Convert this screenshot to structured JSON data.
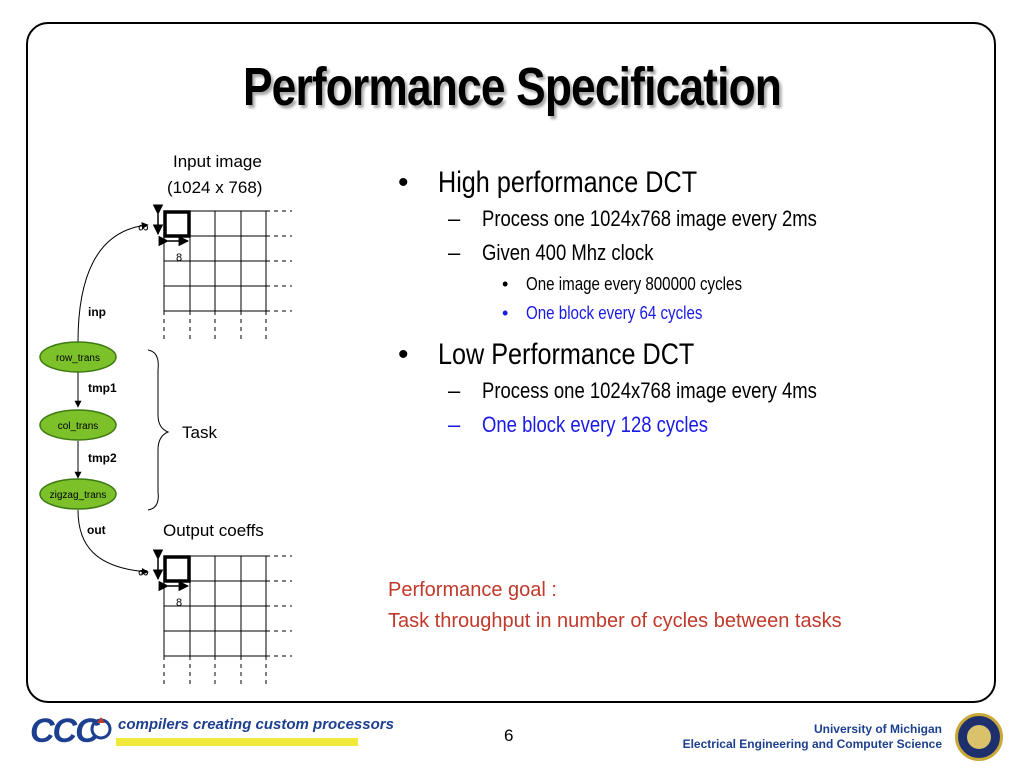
{
  "slide": {
    "title": "Performance Specification",
    "page_number": "6"
  },
  "diagram": {
    "input_label_1": "Input image",
    "input_label_2": "(1024 x 768)",
    "output_label": "Output coeffs",
    "block_size": "8",
    "infinity": "∞",
    "task_label": "Task",
    "nodes": [
      "row_trans",
      "col_trans",
      "zigzag_trans"
    ],
    "edges": [
      "inp",
      "tmp1",
      "tmp2",
      "out"
    ],
    "node_color": "#7cc02a"
  },
  "bullets": {
    "b1": "High performance DCT",
    "b1_1": "Process one 1024x768 image every 2ms",
    "b1_2": "Given 400 Mhz clock",
    "b1_2_1": "One image every 800000 cycles",
    "b1_2_2": "One block every 64 cycles",
    "b2": "Low Performance DCT",
    "b2_1": "Process one 1024x768 image every 4ms",
    "b2_2": "One block every 128 cycles",
    "dot": "•",
    "dash": "–"
  },
  "goal": {
    "line1": "Performance goal :",
    "line2": "Task throughput in number of cycles between tasks"
  },
  "footer": {
    "logo_text": "CCC",
    "tagline": "compilers creating custom processors",
    "university": "University of Michigan",
    "department": "Electrical Engineering and Computer Science",
    "seal_icon": "university-seal-icon"
  },
  "colors": {
    "blue_text": "#1a1ae6",
    "goal_text": "#c0392b",
    "brand_blue": "#1d3f8f",
    "tag_yellow": "#f2ea3a"
  }
}
